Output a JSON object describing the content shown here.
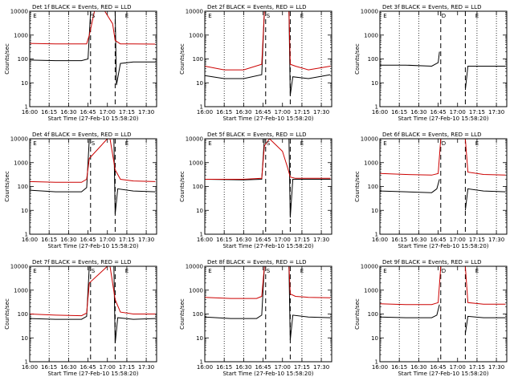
{
  "figure": {
    "colors": {
      "events": "#000000",
      "lld": "#cc0000",
      "axes": "#000000"
    }
  },
  "chart_data": [
    {
      "type": "line",
      "title": "Det 1f BLACK = Events, RED = LLD",
      "xlabel": "Start Time (27-Feb-10 15:58:20)",
      "ylabel": "Counts/sec",
      "x_ticks": [
        "16:00",
        "16:15",
        "16:30",
        "16:45",
        "17:00",
        "17:15",
        "17:30"
      ],
      "y_ticks": [
        "1",
        "10",
        "100",
        "1000",
        "10000"
      ],
      "y_scale": "log",
      "ylim": [
        1,
        10000
      ],
      "xlim": [
        "16:00",
        "17:38"
      ],
      "markers": [
        {
          "label": "E",
          "time": "16:02"
        },
        {
          "label": "S",
          "time": "16:47"
        },
        {
          "label": "E",
          "time": "17:13"
        }
      ],
      "vlines_dashed": [
        "16:47",
        "17:06"
      ],
      "vlines_dotted": [
        "16:15",
        "16:30",
        "17:15",
        "17:30"
      ],
      "series": [
        {
          "name": "Events",
          "color": "#000000",
          "x": [
            "16:00",
            "16:20",
            "16:40",
            "16:45",
            "16:47",
            "16:55",
            "17:00",
            "17:06",
            "17:07",
            "17:10",
            "17:20",
            "17:37"
          ],
          "y": [
            90,
            85,
            85,
            100,
            10000,
            10000,
            10000,
            10000,
            8,
            65,
            75,
            75
          ]
        },
        {
          "name": "LLD",
          "color": "#cc0000",
          "x": [
            "16:00",
            "16:20",
            "16:44",
            "16:46",
            "16:50",
            "16:58",
            "17:04",
            "17:06",
            "17:10",
            "17:20",
            "17:37"
          ],
          "y": [
            450,
            430,
            430,
            1000,
            10000,
            10000,
            3000,
            600,
            430,
            430,
            420
          ]
        }
      ]
    },
    {
      "type": "line",
      "title": "Det 2f BLACK = Events, RED = LLD",
      "xlabel": "Start Time (27-Feb-10 15:58:20)",
      "ylabel": "Counts/sec",
      "x_ticks": [
        "16:00",
        "16:15",
        "16:30",
        "16:45",
        "17:00",
        "17:15",
        "17:30"
      ],
      "y_ticks": [
        "1",
        "10",
        "100",
        "1000",
        "10000"
      ],
      "y_scale": "log",
      "ylim": [
        1,
        10000
      ],
      "xlim": [
        "16:00",
        "17:38"
      ],
      "markers": [
        {
          "label": "E",
          "time": "16:02"
        },
        {
          "label": "S",
          "time": "16:47"
        },
        {
          "label": "E",
          "time": "17:13"
        }
      ],
      "vlines_dashed": [
        "16:47",
        "17:06"
      ],
      "vlines_dotted": [
        "16:15",
        "16:30",
        "17:15",
        "17:30"
      ],
      "series": [
        {
          "name": "Events",
          "color": "#000000",
          "x": [
            "16:00",
            "16:15",
            "16:30",
            "16:44",
            "16:46",
            "17:05",
            "17:06",
            "17:08",
            "17:20",
            "17:37"
          ],
          "y": [
            20,
            15,
            15,
            22,
            10000,
            10000,
            3,
            18,
            15,
            22
          ]
        },
        {
          "name": "LLD",
          "color": "#cc0000",
          "x": [
            "16:00",
            "16:15",
            "16:30",
            "16:44",
            "16:46",
            "17:05",
            "17:06",
            "17:10",
            "17:20",
            "17:37"
          ],
          "y": [
            50,
            35,
            35,
            60,
            10000,
            10000,
            60,
            50,
            35,
            50
          ]
        }
      ]
    },
    {
      "type": "line",
      "title": "Det 3f BLACK = Events, RED = LLD",
      "xlabel": "Start Time (27-Feb-10 15:58:20)",
      "ylabel": "Counts/sec",
      "x_ticks": [
        "16:00",
        "16:15",
        "16:30",
        "16:45",
        "17:00",
        "17:15",
        "17:30"
      ],
      "y_ticks": [
        "1",
        "10",
        "100",
        "1000",
        "10000"
      ],
      "y_scale": "log",
      "ylim": [
        1,
        10000
      ],
      "xlim": [
        "16:00",
        "17:38"
      ],
      "markers": [
        {
          "label": "E",
          "time": "16:02"
        },
        {
          "label": "D",
          "time": "16:47"
        },
        {
          "label": "E",
          "time": "17:13"
        }
      ],
      "vlines_dashed": [
        "16:47",
        "17:06"
      ],
      "vlines_dotted": [
        "16:15",
        "16:30",
        "17:15",
        "17:30"
      ],
      "series": [
        {
          "name": "Events",
          "color": "#000000",
          "x": [
            "16:00",
            "16:20",
            "16:40",
            "16:45",
            "16:46"
          ],
          "y": [
            55,
            55,
            50,
            70,
            200
          ]
        },
        {
          "name": "Events (after)",
          "color": "#000000",
          "x": [
            "17:06",
            "17:08",
            "17:20",
            "17:37"
          ],
          "y": [
            5,
            50,
            50,
            50
          ]
        }
      ]
    },
    {
      "type": "line",
      "title": "Det 4f BLACK = Events, RED = LLD",
      "xlabel": "Start Time (27-Feb-10 15:58:20)",
      "ylabel": "Counts/sec",
      "x_ticks": [
        "16:00",
        "16:15",
        "16:30",
        "16:45",
        "17:00",
        "17:15",
        "17:30"
      ],
      "y_ticks": [
        "1",
        "10",
        "100",
        "1000",
        "10000"
      ],
      "y_scale": "log",
      "ylim": [
        1,
        10000
      ],
      "xlim": [
        "16:00",
        "17:38"
      ],
      "markers": [
        {
          "label": "E",
          "time": "16:02"
        },
        {
          "label": "S",
          "time": "16:47"
        },
        {
          "label": "E",
          "time": "17:13"
        }
      ],
      "vlines_dashed": [
        "16:47",
        "17:06"
      ],
      "vlines_dotted": [
        "16:15",
        "16:30",
        "17:15",
        "17:30"
      ],
      "series": [
        {
          "name": "Events",
          "color": "#000000",
          "x": [
            "16:00",
            "16:20",
            "16:40",
            "16:44",
            "16:46",
            "17:05",
            "17:06",
            "17:08",
            "17:20",
            "17:37"
          ],
          "y": [
            70,
            60,
            60,
            90,
            10000,
            10000,
            7,
            80,
            65,
            60
          ]
        },
        {
          "name": "LLD",
          "color": "#cc0000",
          "x": [
            "16:00",
            "16:20",
            "16:40",
            "16:44",
            "16:46",
            "17:00",
            "17:02",
            "17:06",
            "17:10",
            "17:20",
            "17:37"
          ],
          "y": [
            160,
            150,
            150,
            200,
            1500,
            10000,
            10000,
            500,
            200,
            170,
            160
          ]
        }
      ]
    },
    {
      "type": "line",
      "title": "Det 5f BLACK = Events, RED = LLD",
      "xlabel": "Start Time (27-Feb-10 15:58:20)",
      "ylabel": "Counts/sec",
      "x_ticks": [
        "16:00",
        "16:15",
        "16:30",
        "16:45",
        "17:00",
        "17:15",
        "17:30"
      ],
      "y_ticks": [
        "1",
        "10",
        "100",
        "1000",
        "10000"
      ],
      "y_scale": "log",
      "ylim": [
        1,
        10000
      ],
      "xlim": [
        "16:00",
        "17:38"
      ],
      "markers": [
        {
          "label": "E",
          "time": "16:02"
        },
        {
          "label": "S",
          "time": "16:47"
        },
        {
          "label": "E",
          "time": "17:13"
        }
      ],
      "vlines_dashed": [
        "16:47",
        "17:06"
      ],
      "vlines_dotted": [
        "16:15",
        "16:30",
        "17:15",
        "17:30"
      ],
      "series": [
        {
          "name": "Events",
          "color": "#000000",
          "x": [
            "16:00",
            "16:30",
            "16:44",
            "16:46",
            "17:05",
            "17:06",
            "17:08",
            "17:20",
            "17:37"
          ],
          "y": [
            200,
            190,
            200,
            10000,
            10000,
            5,
            200,
            200,
            200
          ]
        },
        {
          "name": "LLD",
          "color": "#cc0000",
          "x": [
            "16:00",
            "16:30",
            "16:44",
            "16:46",
            "16:50",
            "17:00",
            "17:04",
            "17:06",
            "17:10",
            "17:37"
          ],
          "y": [
            200,
            200,
            220,
            5000,
            10000,
            3000,
            600,
            250,
            220,
            220
          ]
        }
      ]
    },
    {
      "type": "line",
      "title": "Det 6f BLACK = Events, RED = LLD",
      "xlabel": "Start Time (27-Feb-10 15:58:20)",
      "ylabel": "Counts/sec",
      "x_ticks": [
        "16:00",
        "16:15",
        "16:30",
        "16:45",
        "17:00",
        "17:15",
        "17:30"
      ],
      "y_ticks": [
        "1",
        "10",
        "100",
        "1000",
        "10000"
      ],
      "y_scale": "log",
      "ylim": [
        1,
        10000
      ],
      "xlim": [
        "16:00",
        "17:38"
      ],
      "markers": [
        {
          "label": "E",
          "time": "16:02"
        },
        {
          "label": "D",
          "time": "16:47"
        },
        {
          "label": "E",
          "time": "17:13"
        }
      ],
      "vlines_dashed": [
        "16:47",
        "17:06"
      ],
      "vlines_dotted": [
        "16:15",
        "16:30",
        "17:15",
        "17:30"
      ],
      "series": [
        {
          "name": "Events",
          "color": "#000000",
          "x": [
            "16:00",
            "16:20",
            "16:40",
            "16:44",
            "16:46"
          ],
          "y": [
            65,
            60,
            55,
            80,
            200
          ]
        },
        {
          "name": "Events (after)",
          "color": "#000000",
          "x": [
            "17:06",
            "17:08",
            "17:20",
            "17:37"
          ],
          "y": [
            10,
            80,
            65,
            60
          ]
        },
        {
          "name": "LLD",
          "color": "#cc0000",
          "x": [
            "16:00",
            "16:20",
            "16:40",
            "16:45",
            "16:47"
          ],
          "y": [
            350,
            320,
            300,
            350,
            10000
          ]
        },
        {
          "name": "LLD (after)",
          "color": "#cc0000",
          "x": [
            "17:06",
            "17:08",
            "17:20",
            "17:37"
          ],
          "y": [
            10000,
            400,
            320,
            300
          ]
        }
      ]
    },
    {
      "type": "line",
      "title": "Det 7f BLACK = Events, RED = LLD",
      "xlabel": "Start Time (27-Feb-10 15:58:20)",
      "ylabel": "Counts/sec",
      "x_ticks": [
        "16:00",
        "16:15",
        "16:30",
        "16:45",
        "17:00",
        "17:15",
        "17:30"
      ],
      "y_ticks": [
        "1",
        "10",
        "100",
        "1000",
        "10000"
      ],
      "y_scale": "log",
      "ylim": [
        1,
        10000
      ],
      "xlim": [
        "16:00",
        "17:38"
      ],
      "markers": [
        {
          "label": "E",
          "time": "16:02"
        },
        {
          "label": "S",
          "time": "16:47"
        },
        {
          "label": "E",
          "time": "17:13"
        }
      ],
      "vlines_dashed": [
        "16:47",
        "17:06"
      ],
      "vlines_dotted": [
        "16:15",
        "16:30",
        "17:15",
        "17:30"
      ],
      "series": [
        {
          "name": "Events",
          "color": "#000000",
          "x": [
            "16:00",
            "16:20",
            "16:40",
            "16:44",
            "16:46",
            "17:05",
            "17:06",
            "17:08",
            "17:20",
            "17:37"
          ],
          "y": [
            65,
            60,
            60,
            80,
            10000,
            10000,
            6,
            70,
            60,
            65
          ]
        },
        {
          "name": "LLD",
          "color": "#cc0000",
          "x": [
            "16:00",
            "16:20",
            "16:40",
            "16:44",
            "16:46",
            "17:00",
            "17:02",
            "17:06",
            "17:10",
            "17:20",
            "17:37"
          ],
          "y": [
            100,
            90,
            85,
            110,
            2000,
            10000,
            10000,
            400,
            120,
            100,
            100
          ]
        }
      ]
    },
    {
      "type": "line",
      "title": "Det 8f BLACK = Events, RED = LLD",
      "xlabel": "Start Time (27-Feb-10 15:58:20)",
      "ylabel": "Counts/sec",
      "x_ticks": [
        "16:00",
        "16:15",
        "16:30",
        "16:45",
        "17:00",
        "17:15",
        "17:30"
      ],
      "y_ticks": [
        "1",
        "10",
        "100",
        "1000",
        "10000"
      ],
      "y_scale": "log",
      "ylim": [
        1,
        10000
      ],
      "xlim": [
        "16:00",
        "17:38"
      ],
      "markers": [
        {
          "label": "E",
          "time": "16:02"
        },
        {
          "label": "S",
          "time": "16:47"
        },
        {
          "label": "E",
          "time": "17:13"
        }
      ],
      "vlines_dashed": [
        "16:47",
        "17:06"
      ],
      "vlines_dotted": [
        "16:15",
        "16:30",
        "17:15",
        "17:30"
      ],
      "series": [
        {
          "name": "Events",
          "color": "#000000",
          "x": [
            "16:00",
            "16:20",
            "16:40",
            "16:44",
            "16:46",
            "17:05",
            "17:06",
            "17:08",
            "17:20",
            "17:37"
          ],
          "y": [
            75,
            65,
            65,
            90,
            10000,
            10000,
            8,
            90,
            75,
            70
          ]
        },
        {
          "name": "LLD",
          "color": "#cc0000",
          "x": [
            "16:00",
            "16:20",
            "16:40",
            "16:44",
            "16:46",
            "17:05",
            "17:06",
            "17:10",
            "17:20",
            "17:37"
          ],
          "y": [
            500,
            450,
            450,
            550,
            10000,
            10000,
            700,
            550,
            500,
            480
          ]
        }
      ]
    },
    {
      "type": "line",
      "title": "Det 9f BLACK = Events, RED = LLD",
      "xlabel": "Start Time (27-Feb-10 15:58:20)",
      "ylabel": "Counts/sec",
      "x_ticks": [
        "16:00",
        "16:15",
        "16:30",
        "16:45",
        "17:00",
        "17:15",
        "17:30"
      ],
      "y_ticks": [
        "1",
        "10",
        "100",
        "1000",
        "10000"
      ],
      "y_scale": "log",
      "ylim": [
        1,
        10000
      ],
      "xlim": [
        "16:00",
        "17:38"
      ],
      "markers": [
        {
          "label": "E",
          "time": "16:02"
        },
        {
          "label": "D",
          "time": "16:47"
        },
        {
          "label": "E",
          "time": "17:13"
        }
      ],
      "vlines_dashed": [
        "16:47",
        "17:06"
      ],
      "vlines_dotted": [
        "16:15",
        "16:30",
        "17:15",
        "17:30"
      ],
      "series": [
        {
          "name": "Events",
          "color": "#000000",
          "x": [
            "16:00",
            "16:20",
            "16:40",
            "16:44",
            "16:46"
          ],
          "y": [
            75,
            70,
            70,
            90,
            250
          ]
        },
        {
          "name": "Events (after)",
          "color": "#000000",
          "x": [
            "17:06",
            "17:08",
            "17:20",
            "17:37"
          ],
          "y": [
            15,
            80,
            70,
            70
          ]
        },
        {
          "name": "LLD",
          "color": "#cc0000",
          "x": [
            "16:00",
            "16:20",
            "16:40",
            "16:45",
            "16:47"
          ],
          "y": [
            270,
            250,
            250,
            300,
            10000
          ]
        },
        {
          "name": "LLD (after)",
          "color": "#cc0000",
          "x": [
            "17:06",
            "17:08",
            "17:20",
            "17:37"
          ],
          "y": [
            10000,
            300,
            260,
            260
          ]
        }
      ]
    }
  ]
}
